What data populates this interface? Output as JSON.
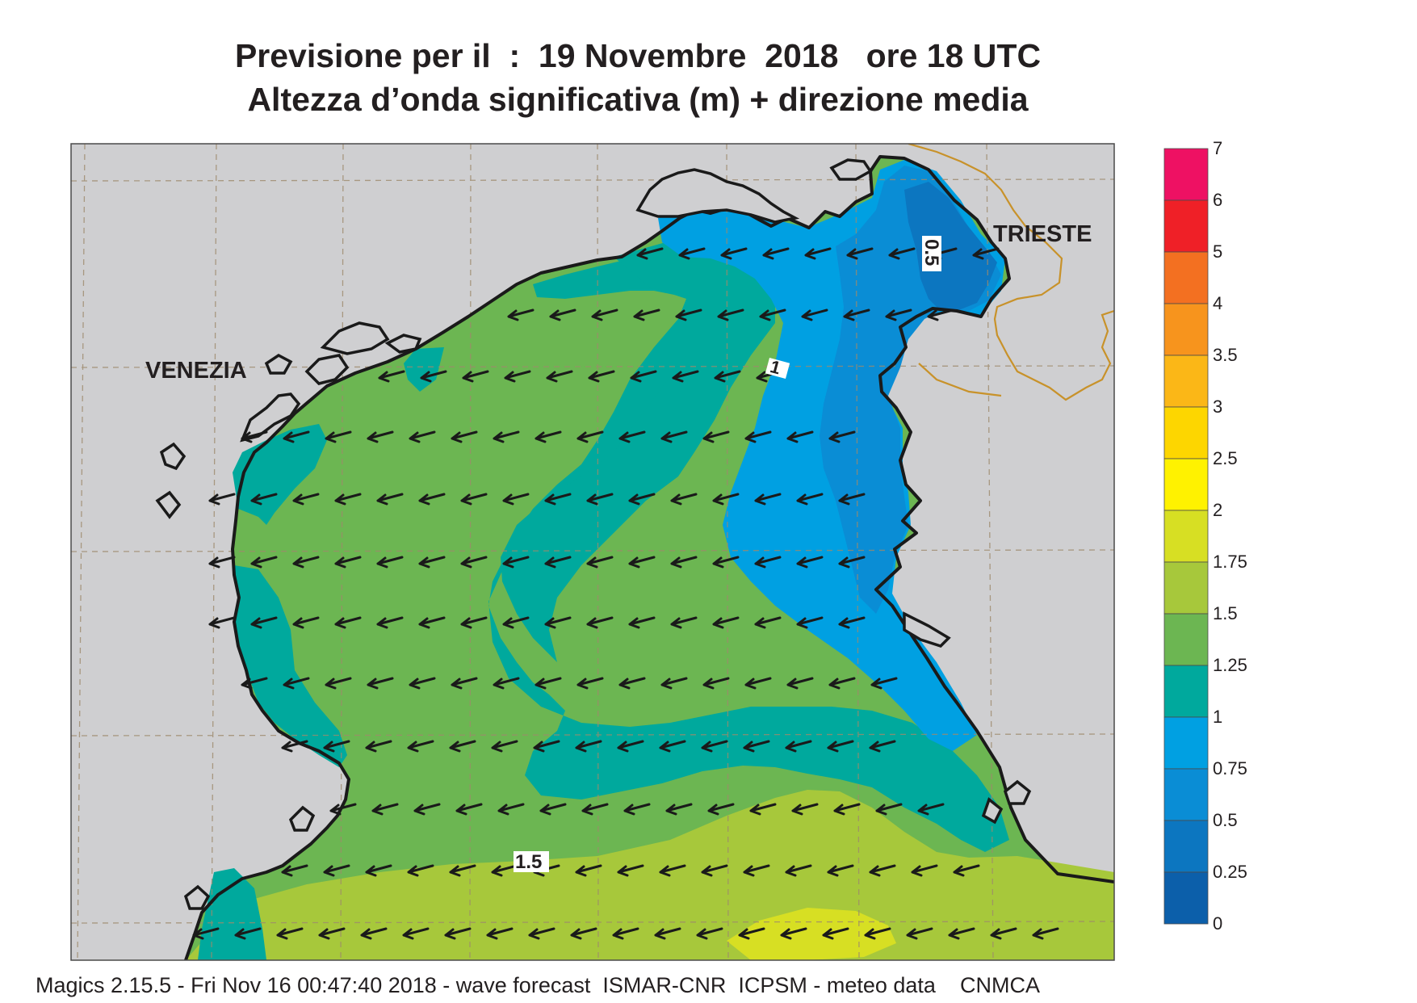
{
  "title": {
    "line1": "Previsione per il  :  19 Novembre  2018   ore 18 UTC",
    "line2": "Altezza d’onda significativa (m) + direzione media"
  },
  "map": {
    "cities": [
      "VENEZIA",
      "TRIESTE"
    ],
    "contour_labels": [
      "0.5",
      "1",
      "1.5"
    ],
    "direction": "arrows pointing west / west-south-west",
    "land_color": "#cfcfd1",
    "border_color": "#c8922a",
    "grid": "dashed graticule"
  },
  "legend": {
    "ticks": [
      "7",
      "6",
      "5",
      "4",
      "3.5",
      "3",
      "2.5",
      "2",
      "1.75",
      "1.5",
      "1.25",
      "1",
      "0.75",
      "0.5",
      "0.25",
      "0"
    ],
    "colors": [
      "#ee1163",
      "#ef2027",
      "#f37021",
      "#f7941d",
      "#fbb717",
      "#fdd600",
      "#fff200",
      "#d7df23",
      "#a7c83b",
      "#6cb652",
      "#00a99d",
      "#00a0e2",
      "#0a8dd5",
      "#0c76c0",
      "#0c5faa"
    ]
  },
  "footer": "Magics 2.15.5 - Fri Nov 16 00:47:40 2018 - wave forecast  ISMAR-CNR  ICPSM - meteo data    CNMCA"
}
